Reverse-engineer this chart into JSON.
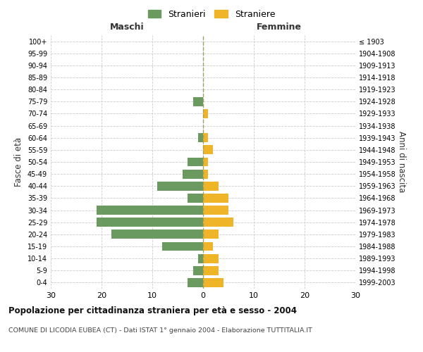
{
  "age_groups": [
    "0-4",
    "5-9",
    "10-14",
    "15-19",
    "20-24",
    "25-29",
    "30-34",
    "35-39",
    "40-44",
    "45-49",
    "50-54",
    "55-59",
    "60-64",
    "65-69",
    "70-74",
    "75-79",
    "80-84",
    "85-89",
    "90-94",
    "95-99",
    "100+"
  ],
  "birth_years": [
    "1999-2003",
    "1994-1998",
    "1989-1993",
    "1984-1988",
    "1979-1983",
    "1974-1978",
    "1969-1973",
    "1964-1968",
    "1959-1963",
    "1954-1958",
    "1949-1953",
    "1944-1948",
    "1939-1943",
    "1934-1938",
    "1929-1933",
    "1924-1928",
    "1919-1923",
    "1914-1918",
    "1909-1913",
    "1904-1908",
    "≤ 1903"
  ],
  "males": [
    3,
    2,
    1,
    8,
    18,
    21,
    21,
    3,
    9,
    4,
    3,
    0,
    1,
    0,
    0,
    2,
    0,
    0,
    0,
    0,
    0
  ],
  "females": [
    4,
    3,
    3,
    2,
    3,
    6,
    5,
    5,
    3,
    1,
    1,
    2,
    1,
    0,
    1,
    0,
    0,
    0,
    0,
    0,
    0
  ],
  "male_color": "#6a9a5f",
  "female_color": "#f0b429",
  "center_line_color": "#a0a060",
  "grid_color": "#cccccc",
  "background_color": "#ffffff",
  "title": "Popolazione per cittadinanza straniera per età e sesso - 2004",
  "subtitle": "COMUNE DI LICODIA EUBEA (CT) - Dati ISTAT 1° gennaio 2004 - Elaborazione TUTTITALIA.IT",
  "left_label": "Maschi",
  "right_label": "Femmine",
  "y_label": "Fasce di età",
  "y_label_right": "Anni di nascita",
  "legend_male": "Stranieri",
  "legend_female": "Straniere",
  "xlim": 30
}
